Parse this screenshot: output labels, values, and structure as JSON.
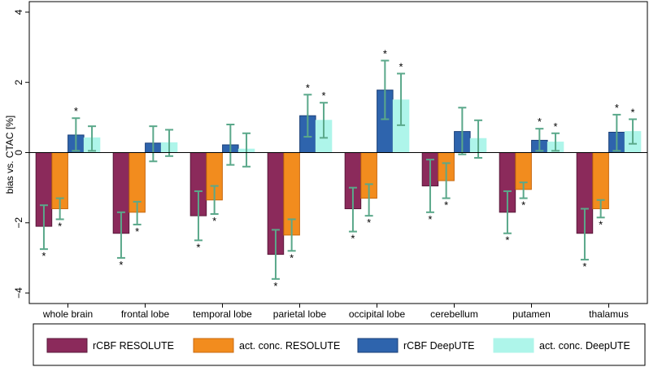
{
  "chart_data": {
    "type": "bar",
    "title": "",
    "xlabel": "",
    "ylabel": "bias vs. CTAC [%]",
    "ylim": [
      -4.3,
      4.3
    ],
    "yticks": [
      -4,
      -2,
      0,
      2,
      4
    ],
    "ytick_labels": [
      "−4",
      "−2",
      "0",
      "2",
      "4"
    ],
    "grid": false,
    "legend_position": "bottom",
    "categories": [
      "whole brain",
      "frontal lobe",
      "temporal lobe",
      "parietal lobe",
      "occipital lobe",
      "cerebellum",
      "putamen",
      "thalamus"
    ],
    "series": [
      {
        "name": "rCBF RESOLUTE",
        "fill": "#8b2a5b",
        "stroke": "#5a1a3b",
        "values": [
          -2.1,
          -2.3,
          -1.8,
          -2.9,
          -1.6,
          -0.95,
          -1.7,
          -2.3
        ],
        "err_low": [
          -2.75,
          -3.0,
          -2.5,
          -3.6,
          -2.25,
          -1.7,
          -2.3,
          -3.05
        ],
        "err_high": [
          -1.5,
          -1.7,
          -1.1,
          -2.2,
          -1.0,
          -0.2,
          -1.1,
          -1.6
        ],
        "significant": [
          true,
          true,
          true,
          true,
          true,
          true,
          true,
          true
        ],
        "star_position": [
          "below",
          "below",
          "below",
          "below",
          "below",
          "below",
          "below",
          "below"
        ]
      },
      {
        "name": "act. conc. RESOLUTE",
        "fill": "#f28c1e",
        "stroke": "#c86a10",
        "values": [
          -1.6,
          -1.7,
          -1.35,
          -2.35,
          -1.3,
          -0.8,
          -1.05,
          -1.6
        ],
        "err_low": [
          -1.9,
          -2.05,
          -1.75,
          -2.8,
          -1.8,
          -1.3,
          -1.3,
          -1.85
        ],
        "err_high": [
          -1.3,
          -1.4,
          -0.95,
          -1.9,
          -0.9,
          -0.3,
          -0.85,
          -1.35
        ],
        "significant": [
          true,
          true,
          true,
          true,
          true,
          true,
          true,
          true
        ],
        "star_position": [
          "below",
          "below",
          "below",
          "below",
          "below",
          "below",
          "below",
          "below"
        ]
      },
      {
        "name": "rCBF DeepUTE",
        "fill": "#2e64ad",
        "stroke": "#1a3f78",
        "values": [
          0.5,
          0.27,
          0.22,
          1.05,
          1.78,
          0.6,
          0.35,
          0.58
        ],
        "err_low": [
          0.05,
          -0.25,
          -0.35,
          0.45,
          0.95,
          -0.05,
          0.05,
          0.05
        ],
        "err_high": [
          0.98,
          0.75,
          0.8,
          1.65,
          2.62,
          1.28,
          0.68,
          1.08
        ],
        "significant": [
          true,
          false,
          false,
          true,
          true,
          false,
          true,
          true
        ],
        "star_position": [
          "above",
          "above",
          "above",
          "above",
          "above",
          "above",
          "above",
          "above"
        ]
      },
      {
        "name": "act. conc. DeepUTE",
        "fill": "#aef5ea",
        "stroke": "#aef5ea",
        "values": [
          0.42,
          0.28,
          0.1,
          0.92,
          1.5,
          0.4,
          0.3,
          0.6
        ],
        "err_low": [
          0.05,
          -0.1,
          -0.4,
          0.42,
          0.78,
          -0.15,
          0.05,
          0.25
        ],
        "err_high": [
          0.75,
          0.65,
          0.55,
          1.42,
          2.25,
          0.92,
          0.55,
          0.95
        ],
        "significant": [
          false,
          false,
          false,
          true,
          true,
          false,
          true,
          true
        ],
        "star_position": [
          "above",
          "above",
          "above",
          "above",
          "above",
          "above",
          "above",
          "above"
        ]
      }
    ],
    "errorbar_color": "#5aa88a",
    "significance_marker": "*"
  }
}
